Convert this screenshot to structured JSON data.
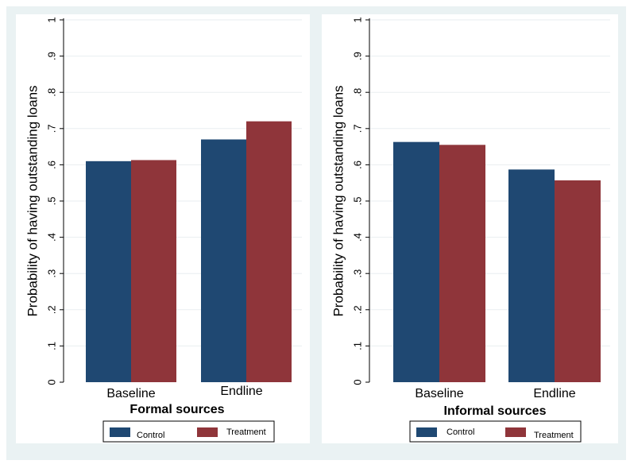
{
  "colors": {
    "background": "#eaf2f3",
    "panel": "#ffffff",
    "grid": "#e9eef0",
    "axis": "#000000",
    "control": "#1f4872",
    "treatment": "#8f353a"
  },
  "chart_data": [
    {
      "type": "bar",
      "title": "Formal sources",
      "ylabel": "Probability of having outstanding loans",
      "xlabel": "",
      "categories": [
        "Baseline",
        "Endline"
      ],
      "series": [
        {
          "name": "Control",
          "values": [
            0.61,
            0.67
          ]
        },
        {
          "name": "Treatment",
          "values": [
            0.613,
            0.72
          ]
        }
      ],
      "ylim": [
        0,
        1
      ],
      "yticks": [
        "0",
        ".1",
        ".2",
        ".3",
        ".4",
        ".5",
        ".6",
        ".7",
        ".8",
        ".9",
        "1"
      ],
      "grid": true,
      "legend": "bottom"
    },
    {
      "type": "bar",
      "title": "Informal sources",
      "ylabel": "Probability of having outstanding loans",
      "xlabel": "",
      "categories": [
        "Baseline",
        "Endline"
      ],
      "series": [
        {
          "name": "Control",
          "values": [
            0.663,
            0.587
          ]
        },
        {
          "name": "Treatment",
          "values": [
            0.655,
            0.557
          ]
        }
      ],
      "ylim": [
        0,
        1
      ],
      "yticks": [
        "0",
        ".1",
        ".2",
        ".3",
        ".4",
        ".5",
        ".6",
        ".7",
        ".8",
        ".9",
        "1"
      ],
      "grid": true,
      "legend": "bottom"
    }
  ]
}
